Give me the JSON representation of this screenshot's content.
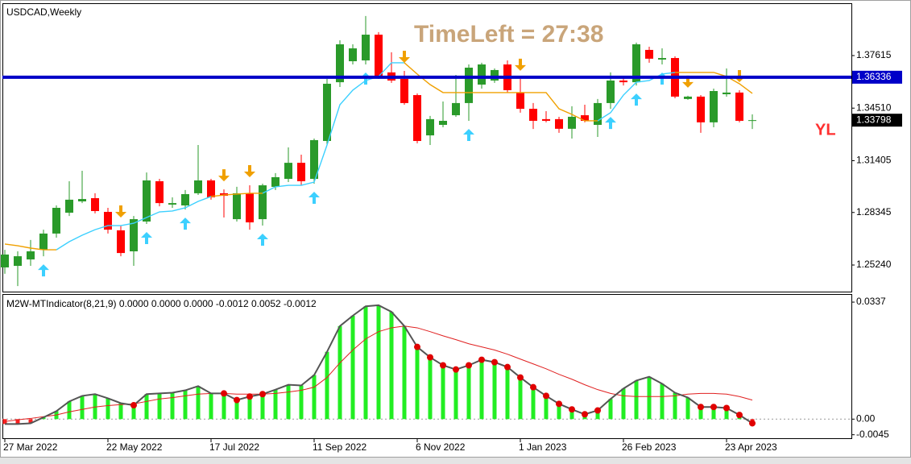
{
  "chart_data": [
    {
      "type": "candlestick",
      "title": "USDCAD,Weekly",
      "annotation": "TimeLeft = 27:38",
      "marker": "YL",
      "categories": [
        "27 Mar 2022",
        null,
        null,
        null,
        null,
        null,
        null,
        null,
        "22 May 2022",
        null,
        null,
        null,
        null,
        null,
        null,
        null,
        "17 Jul 2022",
        null,
        null,
        null,
        null,
        null,
        null,
        null,
        "11 Sep 2022",
        null,
        null,
        null,
        null,
        null,
        null,
        null,
        "6 Nov 2022",
        null,
        null,
        null,
        null,
        null,
        null,
        null,
        "1 Jan 2023",
        null,
        null,
        null,
        null,
        null,
        null,
        null,
        "26 Feb 2023",
        null,
        null,
        null,
        null,
        null,
        null,
        null,
        "23 Apr 2023",
        null,
        null
      ],
      "open": [
        1.251,
        1.2519,
        1.2557,
        1.2614,
        1.271,
        1.2833,
        1.29,
        1.2919,
        1.2838,
        1.2729,
        1.2605,
        1.2781,
        1.3019,
        1.2881,
        1.2876,
        1.2948,
        1.3024,
        1.2948,
        1.2795,
        1.2948,
        1.2795,
        1.2986,
        1.3033,
        1.3128,
        1.3033,
        1.3257,
        1.3604,
        1.3728,
        1.3733,
        1.3885,
        1.3662,
        1.3624,
        1.3528,
        1.329,
        1.3352,
        1.3409,
        1.3481,
        1.359,
        1.3614,
        1.3709,
        1.3543,
        1.3447,
        1.3386,
        1.3386,
        1.3329,
        1.3409,
        1.3352,
        1.3481,
        1.3614,
        1.3604,
        1.3795,
        1.3738,
        1.3747,
        1.3505,
        1.3519,
        1.3367,
        1.3533,
        1.3543,
        1.3376
      ],
      "high": [
        1.2614,
        1.2605,
        1.2672,
        1.2733,
        1.2876,
        1.3019,
        1.3081,
        1.2948,
        1.2862,
        1.2757,
        1.2814,
        1.3071,
        1.3033,
        1.2924,
        1.2967,
        1.3233,
        1.3033,
        1.2971,
        1.2986,
        1.2995,
        1.3005,
        1.3067,
        1.3219,
        1.3176,
        1.3271,
        1.3624,
        1.3852,
        1.3828,
        1.3995,
        1.39,
        1.3781,
        1.3671,
        1.3538,
        1.3405,
        1.349,
        1.3647,
        1.3709,
        1.3719,
        1.3685,
        1.3733,
        1.3624,
        1.3481,
        1.3433,
        1.34,
        1.3462,
        1.3471,
        1.3505,
        1.3662,
        1.3638,
        1.3838,
        1.3814,
        1.3804,
        1.3757,
        1.3524,
        1.3528,
        1.3566,
        1.3685,
        1.3557,
        1.3414
      ],
      "low": [
        1.2472,
        1.24,
        1.2519,
        1.2576,
        1.2686,
        1.2814,
        1.289,
        1.2829,
        1.271,
        1.2576,
        1.2519,
        1.2767,
        1.2871,
        1.2862,
        1.2852,
        1.2938,
        1.291,
        1.2805,
        1.2781,
        1.2733,
        1.2757,
        1.2967,
        1.3014,
        1.2995,
        1.3005,
        1.3233,
        1.3576,
        1.3709,
        1.3709,
        1.3624,
        1.36,
        1.3471,
        1.3243,
        1.3233,
        1.3338,
        1.34,
        1.3376,
        1.3566,
        1.36,
        1.3543,
        1.3424,
        1.3328,
        1.3367,
        1.3305,
        1.3271,
        1.3367,
        1.3281,
        1.3447,
        1.3585,
        1.3585,
        1.3719,
        1.3709,
        1.3509,
        1.35,
        1.3305,
        1.3338,
        1.3519,
        1.3367,
        1.3328
      ],
      "close": [
        1.2586,
        1.2576,
        1.2605,
        1.271,
        1.2862,
        1.291,
        1.2914,
        1.2843,
        1.2733,
        1.2595,
        1.2795,
        1.3024,
        1.289,
        1.289,
        1.2943,
        1.3024,
        1.2924,
        1.2933,
        1.2948,
        1.2776,
        1.2995,
        1.3043,
        1.3128,
        1.3019,
        1.3262,
        1.3595,
        1.3828,
        1.3804,
        1.3885,
        1.3638,
        1.3614,
        1.3481,
        1.3257,
        1.3386,
        1.3376,
        1.3481,
        1.369,
        1.3709,
        1.3676,
        1.3557,
        1.3447,
        1.3376,
        1.3376,
        1.3329,
        1.34,
        1.3376,
        1.3481,
        1.3614,
        1.3604,
        1.3828,
        1.3743,
        1.3747,
        1.3519,
        1.3519,
        1.3367,
        1.3552,
        1.3543,
        1.3376,
        1.338
      ],
      "up_color": "#2a9a2a",
      "down_color": "#ff0000",
      "lines": [
        {
          "color": "#3cd0ff",
          "values": [
            null,
            null,
            null,
            null,
            1.2614,
            1.2662,
            1.27,
            1.2733,
            1.2757,
            1.2757,
            1.2771,
            1.2805,
            1.2838,
            1.2843,
            1.2862,
            1.29,
            1.2929,
            null,
            null,
            null,
            1.2948,
            1.2986,
            1.2995,
            1.2995,
            1.3014,
            1.3233,
            1.3471,
            1.3557,
            1.3614,
            1.3638,
            1.3719,
            1.3719,
            null,
            null,
            null,
            null,
            null,
            null,
            null,
            null,
            null,
            null,
            null,
            null,
            null,
            null,
            1.3376,
            1.3424,
            1.3528,
            1.3604,
            1.3614,
            1.3652,
            1.3662,
            null,
            null,
            null,
            null,
            null,
            null
          ]
        },
        {
          "color": "#f0a000",
          "values": [
            1.2648,
            1.2638,
            1.2624,
            1.2614,
            1.2614,
            null,
            null,
            null,
            null,
            null,
            null,
            null,
            null,
            null,
            null,
            null,
            1.2929,
            1.2938,
            1.2943,
            1.2948,
            1.2948,
            null,
            null,
            null,
            null,
            null,
            null,
            null,
            null,
            null,
            null,
            1.3719,
            1.3652,
            1.359,
            1.3543,
            1.3543,
            1.3543,
            1.3543,
            1.3543,
            1.3543,
            1.3543,
            1.3543,
            1.3543,
            1.3447,
            1.3414,
            1.3376,
            1.3376,
            null,
            null,
            null,
            null,
            null,
            1.3662,
            1.3662,
            1.3662,
            1.3662,
            1.3638,
            1.3595,
            1.3538
          ]
        }
      ],
      "buy_signals": [
        3,
        11,
        14,
        20,
        24,
        28,
        36,
        47,
        49,
        51
      ],
      "buy_color": "#3cd0ff",
      "sell_signals": [
        9,
        17,
        19,
        31,
        40,
        53,
        57
      ],
      "sell_color": "#f0a000",
      "level": {
        "value": 1.36336,
        "color": "#0000c8"
      },
      "current_price": 1.33798,
      "ylim": [
        1.2367,
        1.4066
      ],
      "yticks": [
        1.37615,
        {
          "value": 1.3451,
          "label": "1.34510"
        },
        1.31405,
        1.28345,
        {
          "value": 1.2524,
          "label": "1.25240"
        }
      ]
    },
    {
      "type": "histogram",
      "title": "M2W-MTIndicator(8,21,9) 0.0000 0.0000 0.0000 -0.0012 0.0052 -0.0012",
      "values": [
        -0.0014,
        -0.0014,
        -0.0012,
        0.0005,
        0.0023,
        0.0051,
        0.0067,
        0.0072,
        0.006,
        0.0046,
        0.004,
        0.0072,
        0.0074,
        0.0076,
        0.0083,
        0.0095,
        0.0074,
        0.0074,
        0.0055,
        0.0065,
        0.0072,
        0.0085,
        0.0099,
        0.0097,
        0.0127,
        0.0194,
        0.0268,
        0.0298,
        0.0325,
        0.0328,
        0.0309,
        0.0268,
        0.0208,
        0.0178,
        0.0155,
        0.0143,
        0.0155,
        0.0171,
        0.0164,
        0.015,
        0.012,
        0.0092,
        0.0067,
        0.0044,
        0.0028,
        0.0014,
        0.0025,
        0.0058,
        0.0088,
        0.0111,
        0.0122,
        0.0102,
        0.0076,
        0.0062,
        0.0035,
        0.0035,
        0.0032,
        0.0012,
        -0.0012
      ],
      "signal": [
        -0.0007,
        -0.0002,
        0.0002,
        0.0007,
        0.0012,
        0.0021,
        0.0028,
        0.0035,
        0.0039,
        0.0042,
        0.0044,
        0.0051,
        0.0058,
        0.0062,
        0.0067,
        0.0072,
        0.0074,
        0.0074,
        0.0072,
        0.0072,
        0.0072,
        0.0074,
        0.0078,
        0.0083,
        0.0092,
        0.012,
        0.0162,
        0.0199,
        0.0231,
        0.0252,
        0.0263,
        0.0268,
        0.0263,
        0.0252,
        0.024,
        0.0229,
        0.0217,
        0.0208,
        0.0199,
        0.0187,
        0.0173,
        0.0159,
        0.0145,
        0.0129,
        0.0115,
        0.0099,
        0.0085,
        0.0074,
        0.0067,
        0.0065,
        0.0065,
        0.0065,
        0.0067,
        0.0072,
        0.0074,
        0.0074,
        0.0072,
        0.0065,
        0.0055
      ],
      "dots": [
        10,
        17,
        18,
        19,
        20,
        32,
        33,
        34,
        35,
        36,
        37,
        38,
        39,
        40,
        41,
        42,
        43,
        44,
        45,
        46,
        54,
        55,
        56,
        57,
        58
      ],
      "positive_color": "#22ee22",
      "negative_color": "#ff2020",
      "line_color": "#555555",
      "signal_color": "#e02020",
      "dot_color": "#e00000",
      "ylim": [
        -0.0055,
        0.0358
      ],
      "yticks": [
        0.0337,
        {
          "value": 0,
          "label": "0.00"
        },
        -0.0045
      ]
    }
  ]
}
